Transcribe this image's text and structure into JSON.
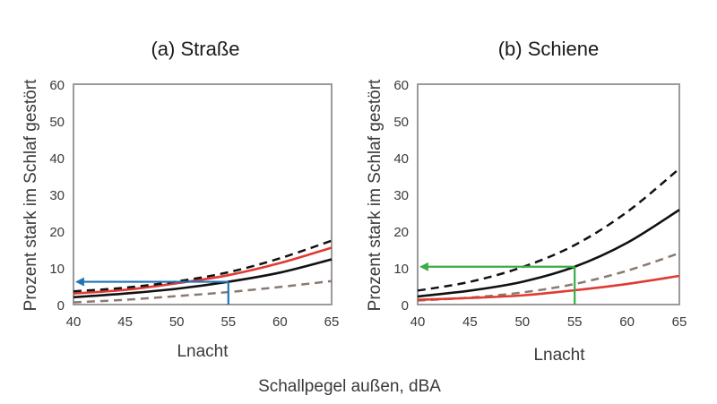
{
  "figure": {
    "shared_xlabel": "Schallpegel außen, dBA"
  },
  "chart_data": [
    {
      "type": "line",
      "title": "(a) Straße",
      "xlabel": "Lnacht",
      "ylabel": "Prozent stark im Schlaf gestört",
      "xlim": [
        40,
        65
      ],
      "ylim": [
        0,
        60
      ],
      "x_ticks": [
        "40",
        "45",
        "50",
        "55",
        "60",
        "65"
      ],
      "y_ticks": [
        "0",
        "10",
        "20",
        "30",
        "40",
        "50",
        "60"
      ],
      "grid": false,
      "legend": "none",
      "series": [
        {
          "color": "#e03a33",
          "style": "solid",
          "x": [
            40,
            45,
            50,
            55,
            60,
            65
          ],
          "y": [
            3.0,
            4.0,
            5.8,
            8.0,
            11.3,
            15.5
          ]
        },
        {
          "color": "#111111",
          "style": "dashed",
          "x": [
            40,
            45,
            50,
            55,
            60,
            65
          ],
          "y": [
            3.6,
            4.6,
            6.3,
            8.8,
            12.6,
            17.4
          ]
        },
        {
          "color": "#111111",
          "style": "solid",
          "x": [
            40,
            45,
            50,
            55,
            60,
            65
          ],
          "y": [
            2.0,
            3.0,
            4.3,
            6.2,
            8.7,
            12.3
          ]
        },
        {
          "color": "#8a7a70",
          "style": "dashed",
          "x": [
            40,
            45,
            50,
            55,
            60,
            65
          ],
          "y": [
            0.6,
            1.3,
            2.3,
            3.4,
            4.8,
            6.4
          ]
        }
      ],
      "annotation": {
        "color": "#1f75b8",
        "x": 55,
        "y": 6.2,
        "arrow_to_x": 40
      }
    },
    {
      "type": "line",
      "title": "(b) Schiene",
      "xlabel": "Lnacht",
      "ylabel": "Prozent stark im Schlaf gestört",
      "xlim": [
        40,
        65
      ],
      "ylim": [
        0,
        60
      ],
      "x_ticks": [
        "40",
        "45",
        "50",
        "55",
        "60",
        "65"
      ],
      "y_ticks": [
        "0",
        "10",
        "20",
        "30",
        "40",
        "50",
        "60"
      ],
      "grid": false,
      "legend": "none",
      "series": [
        {
          "color": "#111111",
          "style": "dashed",
          "x": [
            40,
            45,
            50,
            55,
            60,
            65
          ],
          "y": [
            3.8,
            6.2,
            10.2,
            16.2,
            25.2,
            37.0
          ]
        },
        {
          "color": "#111111",
          "style": "solid",
          "x": [
            40,
            45,
            50,
            55,
            60,
            65
          ],
          "y": [
            2.2,
            3.8,
            6.2,
            10.3,
            16.8,
            25.8
          ]
        },
        {
          "color": "#8a7a70",
          "style": "dashed",
          "x": [
            40,
            45,
            50,
            55,
            60,
            65
          ],
          "y": [
            1.1,
            1.9,
            3.3,
            5.6,
            9.2,
            14.0
          ]
        },
        {
          "color": "#e03a33",
          "style": "solid",
          "x": [
            40,
            45,
            50,
            55,
            60,
            65
          ],
          "y": [
            1.3,
            1.8,
            2.5,
            3.9,
            5.6,
            7.8
          ]
        }
      ],
      "annotation": {
        "color": "#3aac48",
        "x": 55,
        "y": 10.3,
        "arrow_to_x": 40
      }
    }
  ]
}
